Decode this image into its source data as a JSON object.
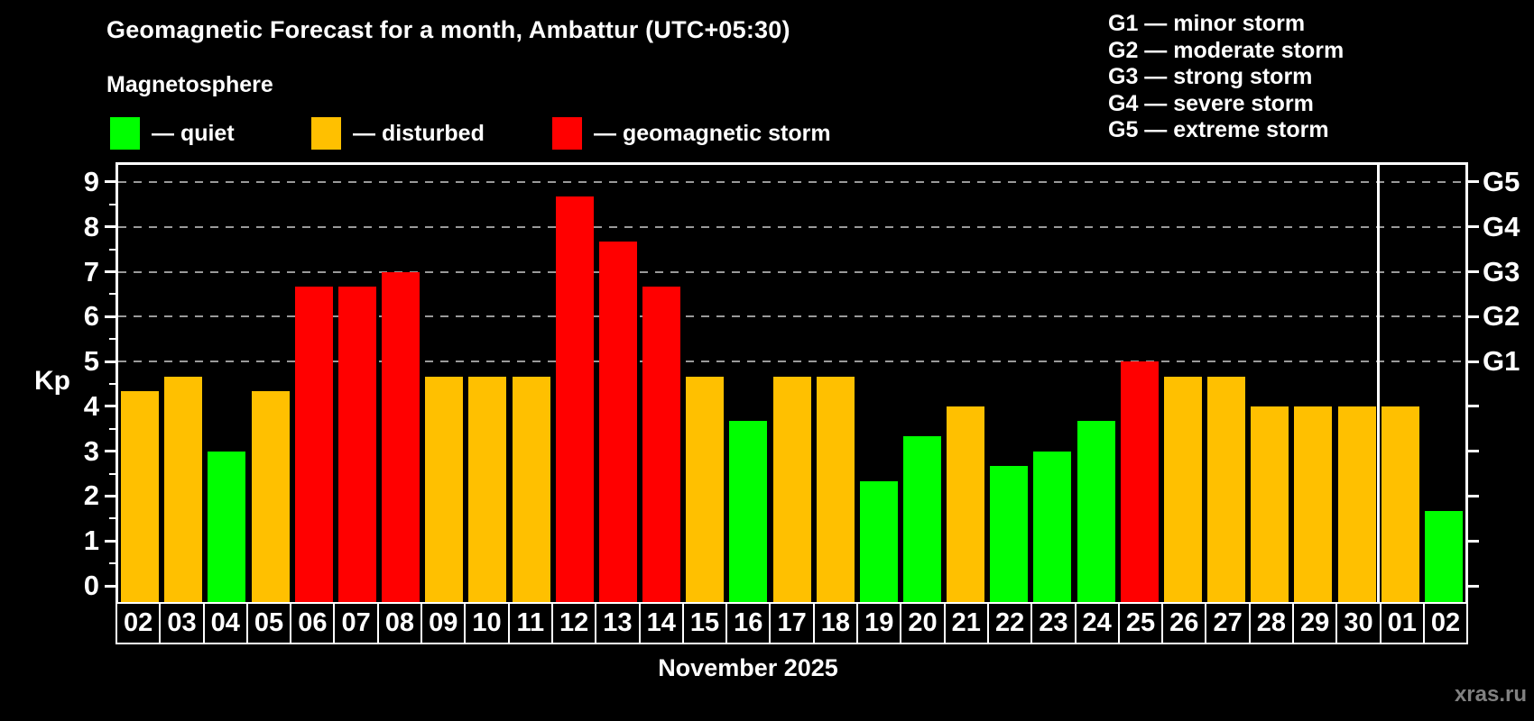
{
  "header": {
    "title": "Geomagnetic Forecast for a month, Ambattur (UTC+05:30)"
  },
  "legend": {
    "subtitle": "Magnetosphere",
    "items": [
      {
        "key": "quiet",
        "label": "— quiet",
        "color": "#00ff00"
      },
      {
        "key": "disturbed",
        "label": "— disturbed",
        "color": "#ffc000"
      },
      {
        "key": "storm",
        "label": "— geomagnetic storm",
        "color": "#ff0000"
      }
    ]
  },
  "g_legend": {
    "items": [
      "G1 — minor storm",
      "G2 — moderate storm",
      "G3 — strong storm",
      "G4 — severe storm",
      "G5 — extreme storm"
    ]
  },
  "axis": {
    "kp_label": "Kp",
    "month_label": "November 2025"
  },
  "watermark": "xras.ru",
  "chart_data": {
    "type": "bar",
    "title": "Geomagnetic Forecast for a month, Ambattur (UTC+05:30)",
    "xlabel": "November 2025",
    "ylabel": "Kp",
    "categories": [
      "02",
      "03",
      "04",
      "05",
      "06",
      "07",
      "08",
      "09",
      "10",
      "11",
      "12",
      "13",
      "14",
      "15",
      "16",
      "17",
      "18",
      "19",
      "20",
      "21",
      "22",
      "23",
      "24",
      "25",
      "26",
      "27",
      "28",
      "29",
      "30",
      "01",
      "02"
    ],
    "values": [
      4.33,
      4.67,
      3,
      4.33,
      6.67,
      6.67,
      7,
      4.67,
      4.67,
      4.67,
      8.67,
      7.67,
      6.67,
      4.67,
      3.67,
      4.67,
      4.67,
      2.33,
      3.33,
      4,
      2.67,
      3,
      3.67,
      5,
      4.67,
      4.67,
      4,
      4,
      4,
      4,
      1.67
    ],
    "status": [
      "disturbed",
      "disturbed",
      "quiet",
      "disturbed",
      "storm",
      "storm",
      "storm",
      "disturbed",
      "disturbed",
      "disturbed",
      "storm",
      "storm",
      "storm",
      "disturbed",
      "quiet",
      "disturbed",
      "disturbed",
      "quiet",
      "quiet",
      "disturbed",
      "quiet",
      "quiet",
      "quiet",
      "storm",
      "disturbed",
      "disturbed",
      "disturbed",
      "disturbed",
      "disturbed",
      "disturbed",
      "quiet"
    ],
    "colors": {
      "quiet": "#00ff00",
      "disturbed": "#ffc000",
      "storm": "#ff0000"
    },
    "ylim": [
      -0.36,
      9.4
    ],
    "y_ticks": [
      0,
      1,
      2,
      3,
      4,
      5,
      6,
      7,
      8,
      9
    ],
    "gridline_levels": [
      5,
      6,
      7,
      8,
      9
    ],
    "grid": "dashed horizontal at G-storm levels only",
    "right_axis": [
      {
        "label": "G1",
        "kp": 5
      },
      {
        "label": "G2",
        "kp": 6
      },
      {
        "label": "G3",
        "kp": 7
      },
      {
        "label": "G4",
        "kp": 8
      },
      {
        "label": "G5",
        "kp": 9
      }
    ],
    "month_separator_before_index": 29,
    "legend_position": "top-left"
  }
}
